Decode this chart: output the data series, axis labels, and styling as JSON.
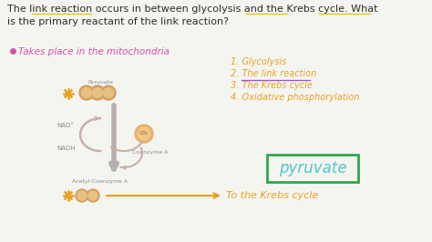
{
  "bg_color": "#f5f5f0",
  "title_line1": "The link reaction occurs in between glycolysis and the Krebs cycle. What",
  "title_line2": "is the primary reactant of the link reaction?",
  "title_color": "#2a2a2a",
  "bullet_text": "Takes place in the mitochondria",
  "bullet_color": "#d44faa",
  "list_items": [
    "1. Glycolysis",
    "2. The link reaction",
    "3. The Krebs cycle",
    "4. Oxidative phosphorylation"
  ],
  "list_color": "#e8a020",
  "underline_color": "#9b59d0",
  "pyruvate_box_text": "pyruvate",
  "pyruvate_box_color": "#2da84e",
  "pyruvate_text_color": "#4dc8cc",
  "krebs_text": "To the Krebs cycle",
  "krebs_color": "#e8a020",
  "arrow_color": "#c8b0a8",
  "co2_color": "#e8a860",
  "circle_outer": "#d4a060",
  "circle_inner": "#e8c080",
  "ast_color": "#e8a020",
  "label_color": "#888888",
  "title_underline_color": "#e8c020",
  "glycolysis_color": "#e8a020",
  "nadplus_color": "#888888",
  "nadh_color": "#888888"
}
